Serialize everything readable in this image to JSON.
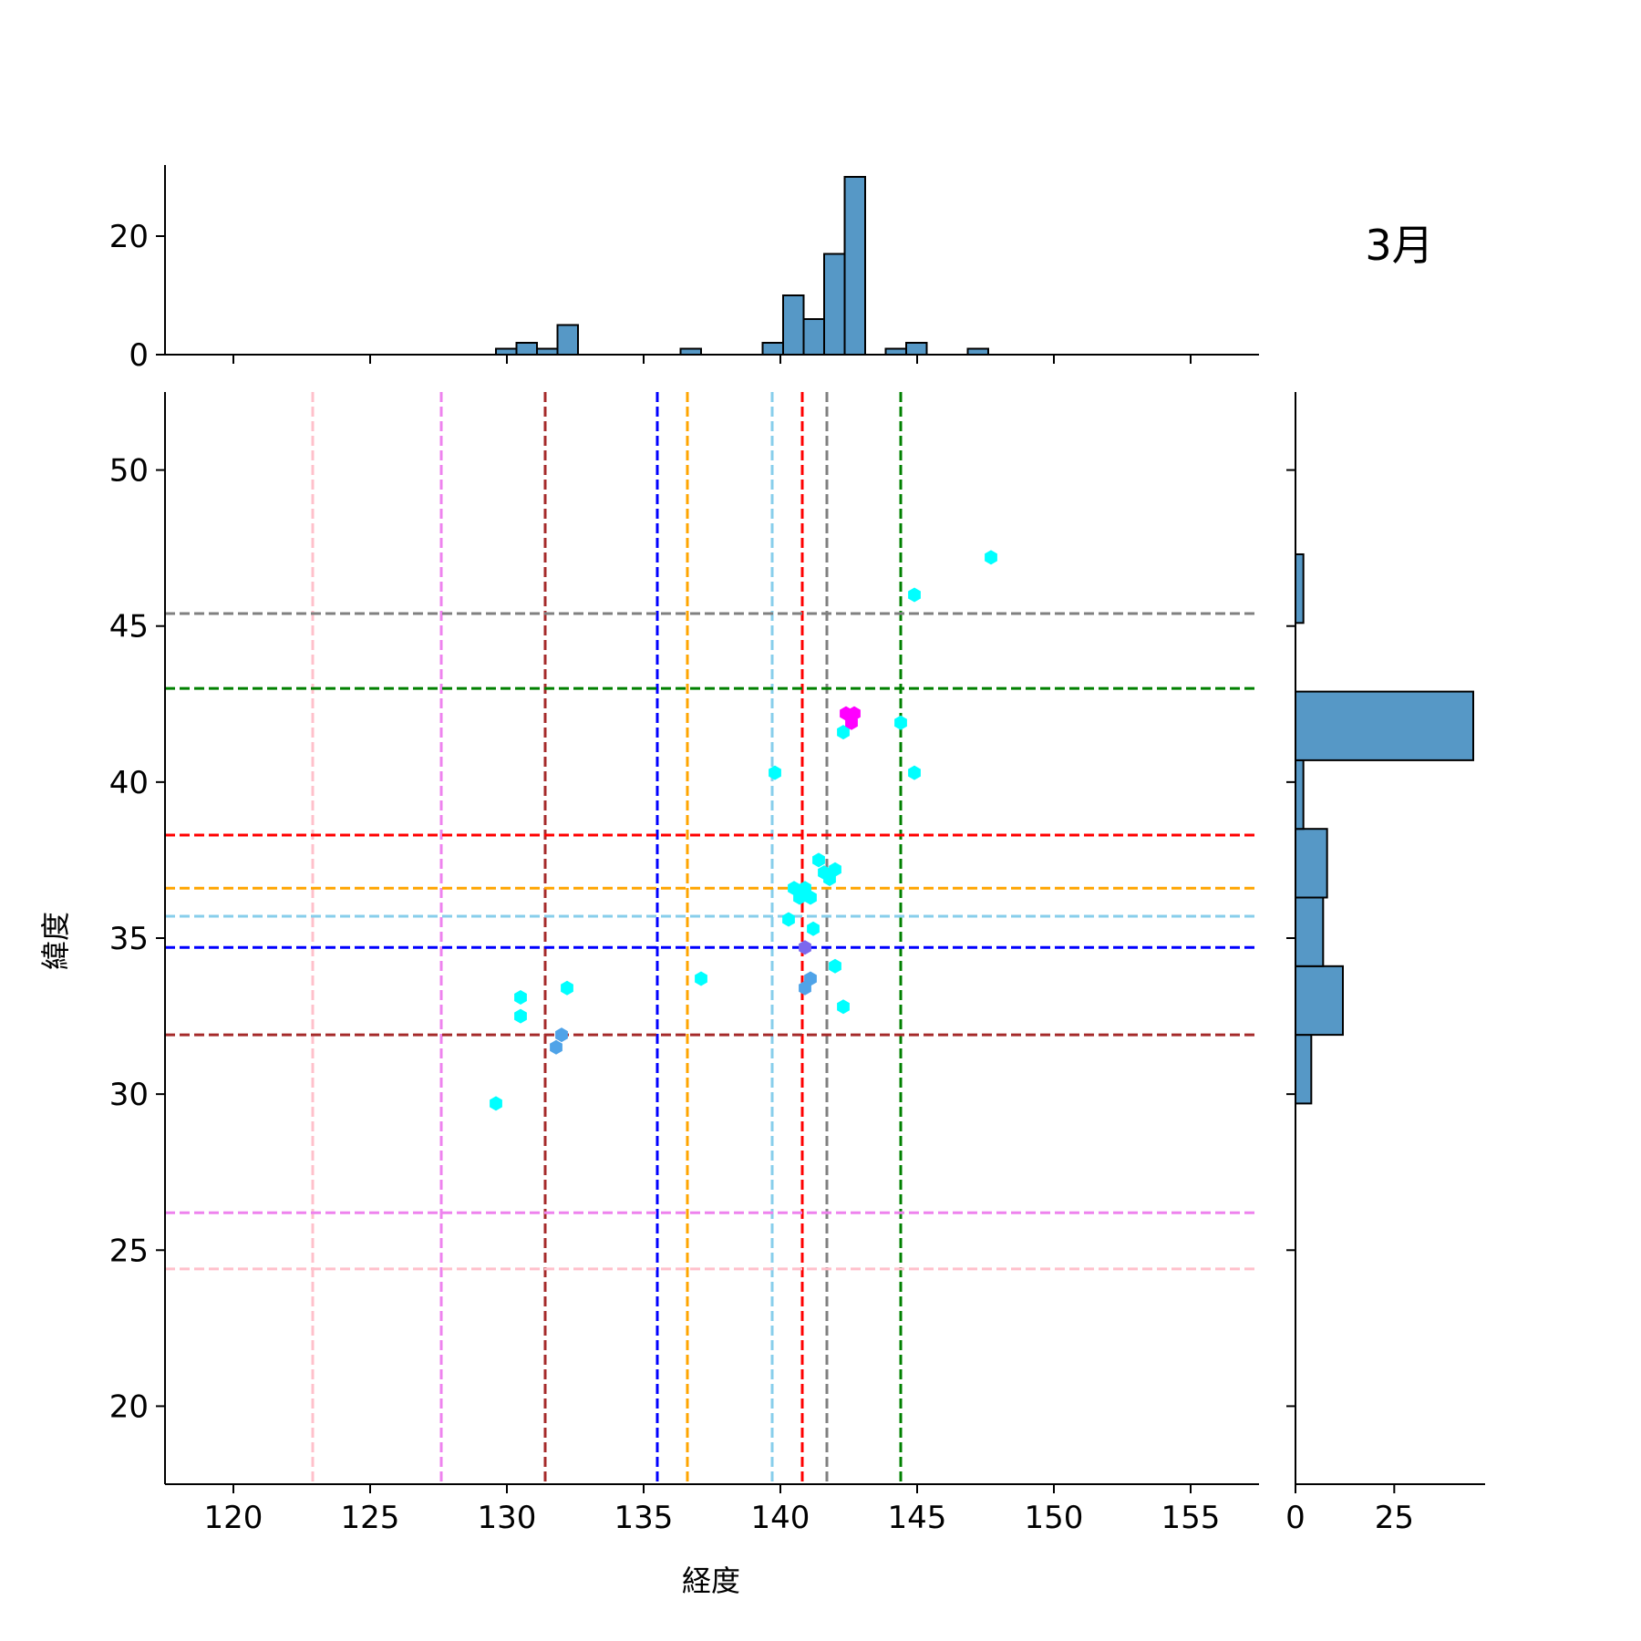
{
  "title": "3月",
  "chart_data": {
    "type": "scatter",
    "title": "3月",
    "xlabel": "経度",
    "ylabel": "緯度",
    "xlim": [
      117.5,
      157.5
    ],
    "ylim": [
      17.5,
      52.5
    ],
    "xticks": [
      120,
      125,
      130,
      135,
      140,
      145,
      150,
      155
    ],
    "yticks": [
      20,
      25,
      30,
      35,
      40,
      45,
      50
    ],
    "grid": false,
    "points": [
      {
        "x": 147.7,
        "y": 47.2,
        "color": "#00ffff"
      },
      {
        "x": 144.9,
        "y": 46.0,
        "color": "#00ffff"
      },
      {
        "x": 144.4,
        "y": 41.9,
        "color": "#00ffff"
      },
      {
        "x": 142.3,
        "y": 41.6,
        "color": "#00ffff"
      },
      {
        "x": 142.4,
        "y": 42.2,
        "color": "#ff00ff"
      },
      {
        "x": 142.7,
        "y": 42.2,
        "color": "#ff00ff"
      },
      {
        "x": 142.6,
        "y": 41.9,
        "color": "#ff00ff"
      },
      {
        "x": 139.8,
        "y": 40.3,
        "color": "#00ffff"
      },
      {
        "x": 144.9,
        "y": 40.3,
        "color": "#00ffff"
      },
      {
        "x": 141.4,
        "y": 37.5,
        "color": "#00ffff"
      },
      {
        "x": 141.6,
        "y": 37.1,
        "color": "#00ffff"
      },
      {
        "x": 142.0,
        "y": 37.2,
        "color": "#00ffff"
      },
      {
        "x": 141.8,
        "y": 36.9,
        "color": "#00ffff"
      },
      {
        "x": 140.5,
        "y": 36.6,
        "color": "#00ffff"
      },
      {
        "x": 140.9,
        "y": 36.6,
        "color": "#00ffff"
      },
      {
        "x": 140.7,
        "y": 36.3,
        "color": "#00ffff"
      },
      {
        "x": 141.1,
        "y": 36.3,
        "color": "#00ffff"
      },
      {
        "x": 140.3,
        "y": 35.6,
        "color": "#00ffff"
      },
      {
        "x": 141.2,
        "y": 35.3,
        "color": "#00ffff"
      },
      {
        "x": 140.9,
        "y": 34.7,
        "color": "#7b68ee"
      },
      {
        "x": 142.0,
        "y": 34.1,
        "color": "#00ffff"
      },
      {
        "x": 141.1,
        "y": 33.7,
        "color": "#4fa3e8"
      },
      {
        "x": 140.9,
        "y": 33.4,
        "color": "#4fa3e8"
      },
      {
        "x": 142.3,
        "y": 32.8,
        "color": "#00ffff"
      },
      {
        "x": 137.1,
        "y": 33.7,
        "color": "#00ffff"
      },
      {
        "x": 132.2,
        "y": 33.4,
        "color": "#00ffff"
      },
      {
        "x": 130.5,
        "y": 33.1,
        "color": "#00ffff"
      },
      {
        "x": 130.5,
        "y": 32.5,
        "color": "#00ffff"
      },
      {
        "x": 132.0,
        "y": 31.9,
        "color": "#4fa3e8"
      },
      {
        "x": 131.8,
        "y": 31.5,
        "color": "#4fa3e8"
      },
      {
        "x": 129.6,
        "y": 29.7,
        "color": "#00ffff"
      }
    ],
    "vertical_lines": [
      {
        "x": 122.9,
        "color": "#ffc0cb"
      },
      {
        "x": 127.6,
        "color": "#ee82ee"
      },
      {
        "x": 131.4,
        "color": "#a52a2a"
      },
      {
        "x": 135.5,
        "color": "#0000ff"
      },
      {
        "x": 136.6,
        "color": "#ffa500"
      },
      {
        "x": 139.7,
        "color": "#87ceeb"
      },
      {
        "x": 140.8,
        "color": "#ff0000"
      },
      {
        "x": 141.7,
        "color": "#808080"
      },
      {
        "x": 144.4,
        "color": "#008000"
      }
    ],
    "horizontal_lines": [
      {
        "y": 45.4,
        "color": "#808080"
      },
      {
        "y": 43.0,
        "color": "#008000"
      },
      {
        "y": 38.3,
        "color": "#ff0000"
      },
      {
        "y": 36.6,
        "color": "#ffa500"
      },
      {
        "y": 35.7,
        "color": "#87ceeb"
      },
      {
        "y": 34.7,
        "color": "#0000ff"
      },
      {
        "y": 31.9,
        "color": "#a52a2a"
      },
      {
        "y": 26.2,
        "color": "#ee82ee"
      },
      {
        "y": 24.4,
        "color": "#ffc0cb"
      }
    ],
    "marginal_x_histogram": {
      "ylim": [
        0,
        32
      ],
      "yticks": [
        0,
        20
      ],
      "bins": [
        {
          "x0": 129.6,
          "x1": 130.35,
          "count": 1
        },
        {
          "x0": 130.35,
          "x1": 131.1,
          "count": 2
        },
        {
          "x0": 131.1,
          "x1": 131.85,
          "count": 1
        },
        {
          "x0": 131.85,
          "x1": 132.6,
          "count": 5
        },
        {
          "x0": 136.35,
          "x1": 137.1,
          "count": 1
        },
        {
          "x0": 139.35,
          "x1": 140.1,
          "count": 2
        },
        {
          "x0": 140.1,
          "x1": 140.85,
          "count": 10
        },
        {
          "x0": 140.85,
          "x1": 141.6,
          "count": 6
        },
        {
          "x0": 141.6,
          "x1": 142.35,
          "count": 17
        },
        {
          "x0": 142.35,
          "x1": 143.1,
          "count": 30
        },
        {
          "x0": 143.85,
          "x1": 144.6,
          "count": 1
        },
        {
          "x0": 144.6,
          "x1": 145.35,
          "count": 2
        },
        {
          "x0": 146.85,
          "x1": 147.6,
          "count": 1
        }
      ]
    },
    "marginal_y_histogram": {
      "xlim": [
        0,
        48
      ],
      "xticks": [
        0,
        25
      ],
      "bins": [
        {
          "y0": 29.7,
          "y1": 31.9,
          "count": 4
        },
        {
          "y0": 31.9,
          "y1": 34.1,
          "count": 12
        },
        {
          "y0": 34.1,
          "y1": 36.3,
          "count": 7
        },
        {
          "y0": 36.3,
          "y1": 38.5,
          "count": 8
        },
        {
          "y0": 38.5,
          "y1": 40.7,
          "count": 2
        },
        {
          "y0": 40.7,
          "y1": 42.9,
          "count": 45
        },
        {
          "y0": 45.1,
          "y1": 47.3,
          "count": 2
        }
      ]
    }
  }
}
